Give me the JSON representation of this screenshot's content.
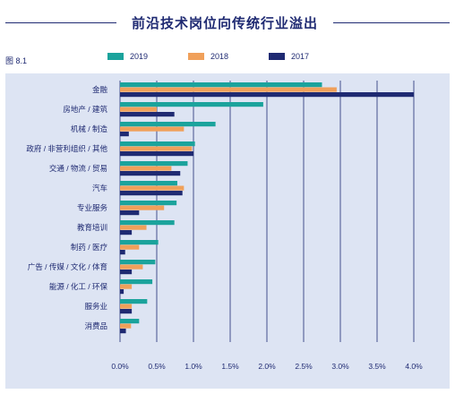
{
  "header": {
    "title": "前沿技术岗位向传统行业溢出",
    "figure_label": "图 8.1"
  },
  "colors": {
    "s2019": "#1ba39c",
    "s2018": "#f0a05a",
    "s2017": "#1f2a72",
    "grid": "#1f2a72",
    "text": "#1f2a72",
    "panel": "#dde4f3"
  },
  "chart_data": {
    "type": "bar",
    "orientation": "horizontal",
    "categories": [
      "金融",
      "房地产 / 建筑",
      "机械 / 制造",
      "政府 / 非营利组织 / 其他",
      "交通 / 物流 / 贸易",
      "汽车",
      "专业服务",
      "教育培训",
      "制药 / 医疗",
      "广告 / 传媒 / 文化 / 体育",
      "能源 / 化工 / 环保",
      "服务业",
      "消费品"
    ],
    "series": [
      {
        "name": "2019",
        "values": [
          2.75,
          1.95,
          1.3,
          1.02,
          0.92,
          0.78,
          0.77,
          0.74,
          0.52,
          0.48,
          0.44,
          0.37,
          0.26
        ]
      },
      {
        "name": "2018",
        "values": [
          2.95,
          0.5,
          0.87,
          0.98,
          0.7,
          0.87,
          0.6,
          0.36,
          0.26,
          0.31,
          0.16,
          0.16,
          0.15
        ]
      },
      {
        "name": "2017",
        "values": [
          4.0,
          0.74,
          0.12,
          1.0,
          0.82,
          0.85,
          0.26,
          0.16,
          0.07,
          0.16,
          0.05,
          0.16,
          0.08
        ]
      }
    ],
    "xticks": [
      "0.0%",
      "0.5%",
      "1.0%",
      "1.5%",
      "2.0%",
      "2.5%",
      "3.0%",
      "3.5%",
      "4.0%"
    ],
    "xlim": [
      0,
      4.0
    ],
    "legend_position": "top",
    "grid": "vertical"
  }
}
